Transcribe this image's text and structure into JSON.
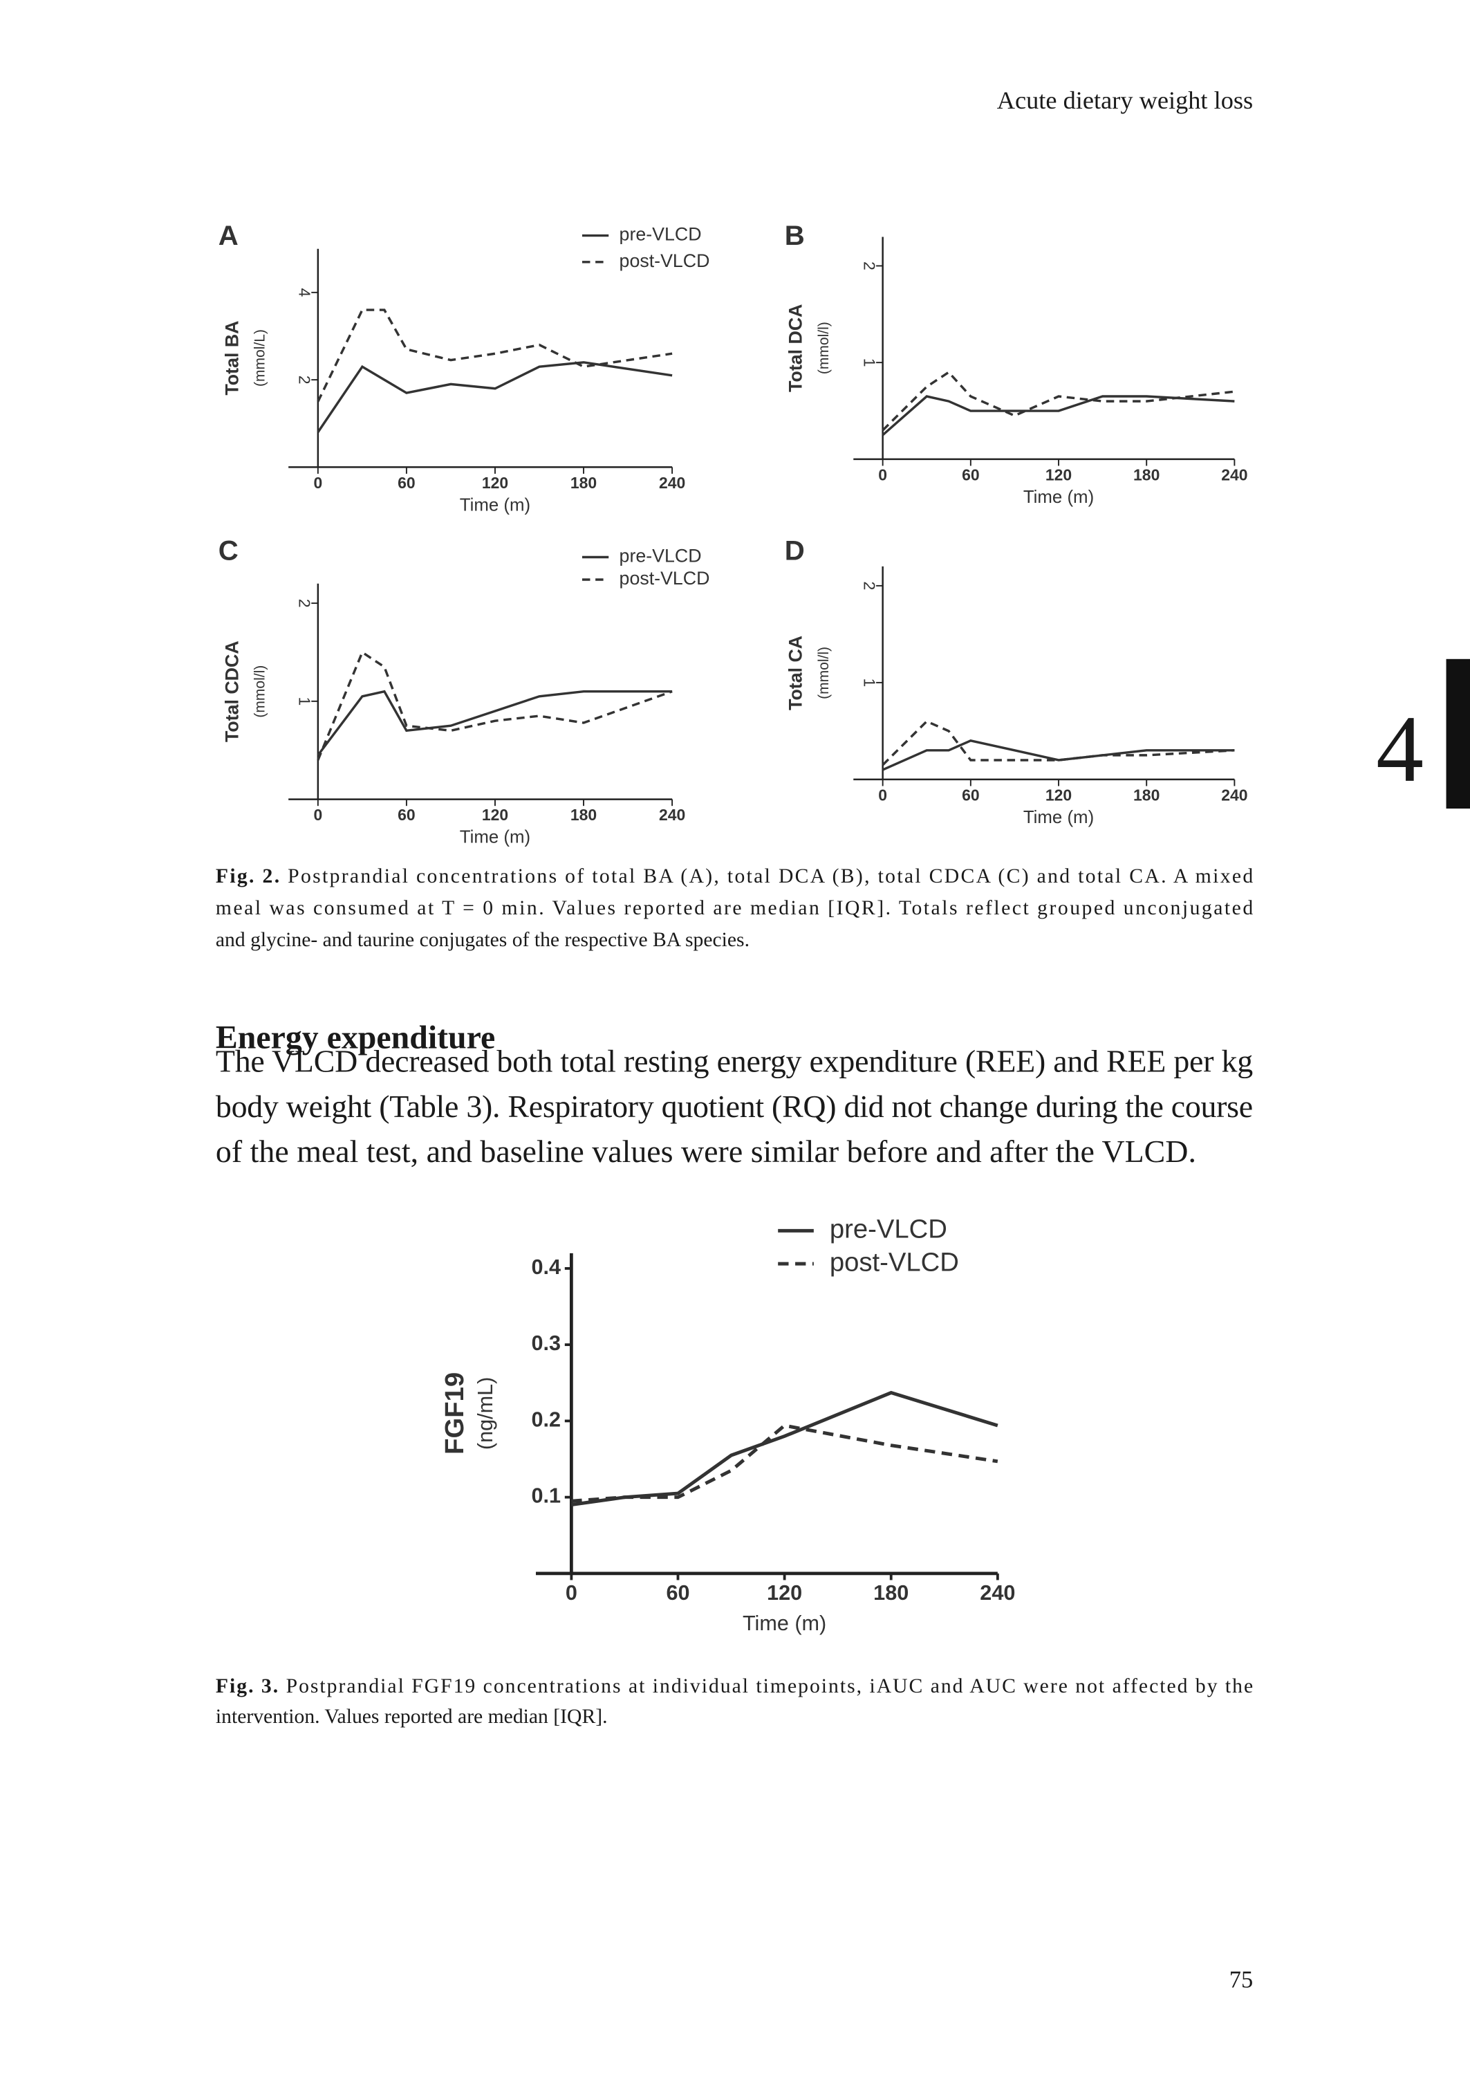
{
  "header": {
    "running_title": "Acute dietary weight loss"
  },
  "chart_data": [
    {
      "type": "line",
      "panel_label": "A",
      "y_label": "Total BA",
      "y_unit": "(mmol/L)",
      "x_label": "Time (m)",
      "legend": true,
      "x": [
        0,
        30,
        45,
        60,
        90,
        120,
        150,
        180,
        240
      ],
      "series": [
        {
          "name": "pre-VLCD",
          "color": "#333333",
          "line_style": "solid",
          "values": [
            0.8,
            2.3,
            2.0,
            1.7,
            1.9,
            1.8,
            2.3,
            2.4,
            2.1
          ]
        },
        {
          "name": "post-VLCD",
          "color": "#333333",
          "line_style": "dashed",
          "values": [
            1.5,
            3.6,
            3.6,
            2.7,
            2.45,
            2.6,
            2.8,
            2.3,
            2.6
          ]
        }
      ],
      "xlim": [
        -20,
        240
      ],
      "ylim": [
        0,
        5
      ],
      "xticks": [
        0,
        60,
        120,
        180,
        240
      ],
      "yticks": [
        2,
        4
      ]
    },
    {
      "type": "line",
      "panel_label": "B",
      "y_label": "Total DCA",
      "y_unit": "(mmol/l)",
      "x_label": "Time (m)",
      "legend": false,
      "x": [
        0,
        30,
        45,
        60,
        90,
        120,
        150,
        180,
        240
      ],
      "series": [
        {
          "name": "pre-VLCD",
          "color": "#333333",
          "line_style": "solid",
          "values": [
            0.25,
            0.65,
            0.6,
            0.5,
            0.5,
            0.5,
            0.65,
            0.65,
            0.6
          ]
        },
        {
          "name": "post-VLCD",
          "color": "#333333",
          "line_style": "dashed",
          "values": [
            0.3,
            0.75,
            0.9,
            0.65,
            0.45,
            0.65,
            0.6,
            0.6,
            0.7
          ]
        }
      ],
      "xlim": [
        -20,
        240
      ],
      "ylim": [
        0,
        2.3
      ],
      "xticks": [
        0,
        60,
        120,
        180,
        240
      ],
      "yticks": [
        1,
        2
      ]
    },
    {
      "type": "line",
      "panel_label": "C",
      "y_label": "Total CDCA",
      "y_unit": "(mmol/l)",
      "x_label": "Time (m)",
      "legend": true,
      "x": [
        0,
        30,
        45,
        60,
        90,
        120,
        150,
        180,
        240
      ],
      "series": [
        {
          "name": "pre-VLCD",
          "color": "#333333",
          "line_style": "solid",
          "values": [
            0.45,
            1.05,
            1.1,
            0.7,
            0.75,
            0.9,
            1.05,
            1.1,
            1.1
          ]
        },
        {
          "name": "post-VLCD",
          "color": "#333333",
          "line_style": "dashed",
          "values": [
            0.4,
            1.5,
            1.35,
            0.75,
            0.7,
            0.8,
            0.85,
            0.78,
            1.1
          ]
        }
      ],
      "xlim": [
        -20,
        240
      ],
      "ylim": [
        0,
        2.2
      ],
      "xticks": [
        0,
        60,
        120,
        180,
        240
      ],
      "yticks": [
        1,
        2
      ]
    },
    {
      "type": "line",
      "panel_label": "D",
      "y_label": "Total CA",
      "y_unit": "(mmol/l)",
      "x_label": "Time (m)",
      "legend": false,
      "x": [
        0,
        30,
        45,
        60,
        90,
        120,
        150,
        180,
        240
      ],
      "series": [
        {
          "name": "pre-VLCD",
          "color": "#333333",
          "line_style": "solid",
          "values": [
            0.1,
            0.3,
            0.3,
            0.4,
            0.3,
            0.2,
            0.25,
            0.3,
            0.3
          ]
        },
        {
          "name": "post-VLCD",
          "color": "#333333",
          "line_style": "dashed",
          "values": [
            0.15,
            0.6,
            0.5,
            0.2,
            0.2,
            0.2,
            0.25,
            0.25,
            0.3
          ]
        }
      ],
      "xlim": [
        -20,
        240
      ],
      "ylim": [
        0,
        2.2
      ],
      "xticks": [
        0,
        60,
        120,
        180,
        240
      ],
      "yticks": [
        1,
        2
      ]
    },
    {
      "type": "line",
      "y_label": "FGF19",
      "y_unit": "(ng/mL)",
      "x_label": "Time (m)",
      "legend": true,
      "x": [
        0,
        30,
        60,
        90,
        120,
        180,
        240
      ],
      "series": [
        {
          "name": "pre-VLCD",
          "color": "#333333",
          "line_style": "solid",
          "values": [
            0.09,
            0.1,
            0.105,
            0.155,
            0.18,
            0.237,
            0.194
          ]
        },
        {
          "name": "post-VLCD",
          "color": "#333333",
          "line_style": "dashed",
          "values": [
            0.095,
            0.1,
            0.1,
            0.135,
            0.194,
            0.168,
            0.147
          ]
        }
      ],
      "xlim": [
        -20,
        240
      ],
      "ylim": [
        0,
        0.42
      ],
      "xticks": [
        0,
        60,
        120,
        180,
        240
      ],
      "yticks": [
        0.1,
        0.2,
        0.3,
        0.4
      ]
    }
  ],
  "fig2_caption": {
    "label": "Fig. 2.",
    "lines": [
      "Postprandial concentrations of total BA (A), total DCA (B), total CDCA (C) and total CA. A mixed",
      "meal was consumed at T = 0 min. Values reported are median [IQR]. Totals reflect grouped unconjugated",
      "and glycine- and taurine conjugates of the respective BA species."
    ]
  },
  "section": {
    "heading": "Energy expenditure",
    "lines": [
      "The VLCD decreased both total resting energy expenditure (REE) and REE per kg",
      "body weight (Table 3). Respiratory quotient (RQ) did not change during the course",
      "of the meal test, and baseline values were similar before and after the VLCD."
    ]
  },
  "fig3_caption": {
    "label": "Fig. 3.",
    "lines": [
      "Postprandial FGF19 concentrations at individual timepoints, iAUC and AUC were not affected by the",
      "intervention. Values reported are median [IQR]."
    ]
  },
  "page_number": "75",
  "chapter_tab": "4"
}
